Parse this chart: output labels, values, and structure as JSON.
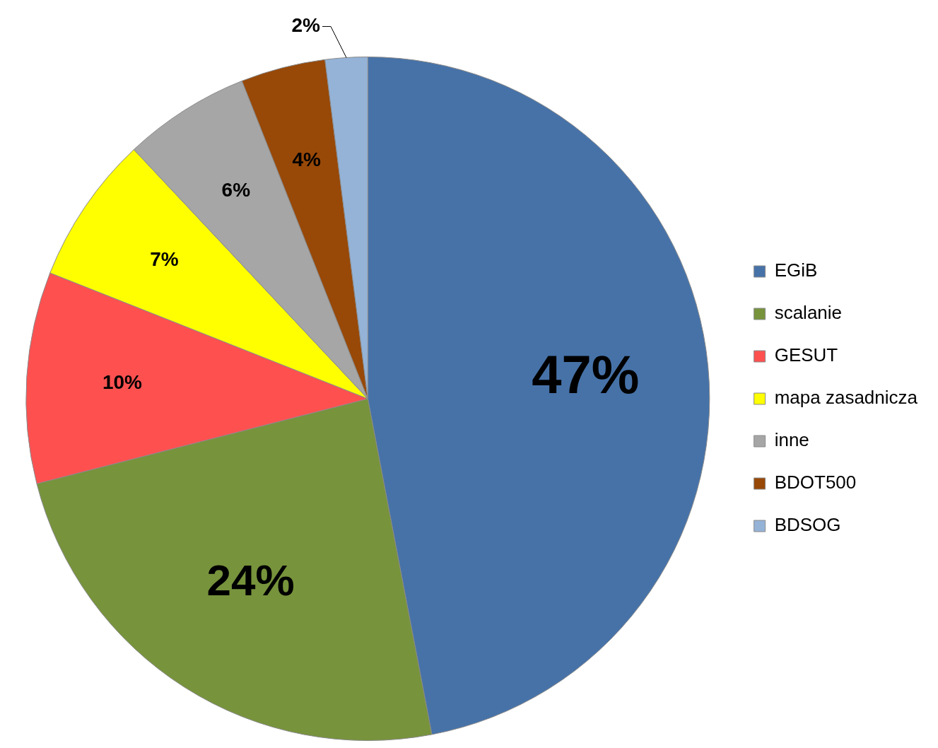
{
  "chart_data": {
    "type": "pie",
    "categories": [
      "EGiB",
      "scalanie",
      "GESUT",
      "mapa zasadnicza",
      "inne",
      "BDOT500",
      "BDSOG"
    ],
    "values": [
      47,
      24,
      10,
      7,
      6,
      4,
      2
    ],
    "colors": [
      "#4672a8",
      "#77933c",
      "#ff5050",
      "#ffff00",
      "#a6a6a6",
      "#984807",
      "#95b3d7"
    ],
    "value_labels": [
      "47%",
      "24%",
      "10%",
      "7%",
      "6%",
      "4%",
      "2%"
    ],
    "legend": "right"
  }
}
